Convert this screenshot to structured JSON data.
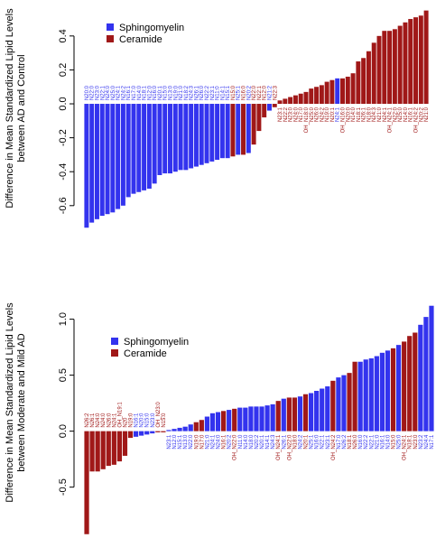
{
  "colors": {
    "sphingomyelin": "#3333ee",
    "ceramide": "#a01818",
    "axis": "#000000"
  },
  "chart_data": [
    {
      "type": "bar",
      "ylabel": "Difference in Mean Standardized Lipid Levels\nbetween AD and Control",
      "ylim": [
        -0.75,
        0.58
      ],
      "yticks": [
        -0.6,
        -0.4,
        -0.2,
        0.0,
        0.2,
        0.4
      ],
      "ytick_labels": [
        "-0.6",
        "-0.4",
        "-0.2",
        "0.0",
        "0.2",
        "0.4"
      ],
      "legend": [
        {
          "name": "Sphingomyelin",
          "color": "sphingomyelin"
        },
        {
          "name": "Ceramide",
          "color": "ceramide"
        }
      ],
      "legend_position": "top-left",
      "series": [
        {
          "name": "Sphingomyelin",
          "color": "sphingomyelin"
        },
        {
          "name": "Ceramide",
          "color": "ceramide"
        }
      ],
      "bars": [
        {
          "v": -0.73,
          "s": 0,
          "label": "N20:0"
        },
        {
          "v": -0.7,
          "s": 0,
          "label": "N22:0"
        },
        {
          "v": -0.68,
          "s": 0,
          "label": "N23:0"
        },
        {
          "v": -0.66,
          "s": 0,
          "label": "N22:1"
        },
        {
          "v": -0.65,
          "s": 0,
          "label": "N24:0"
        },
        {
          "v": -0.64,
          "s": 0,
          "label": "N25:0"
        },
        {
          "v": -0.62,
          "s": 0,
          "label": "N24:1"
        },
        {
          "v": -0.6,
          "s": 0,
          "label": "N24:2"
        },
        {
          "v": -0.55,
          "s": 0,
          "label": "N16:1"
        },
        {
          "v": -0.53,
          "s": 0,
          "label": "N17:0"
        },
        {
          "v": -0.52,
          "s": 0,
          "label": "N14:0"
        },
        {
          "v": -0.51,
          "s": 0,
          "label": "N18:1"
        },
        {
          "v": -0.5,
          "s": 0,
          "label": "N12:0"
        },
        {
          "v": -0.47,
          "s": 0,
          "label": "N16:0"
        },
        {
          "v": -0.42,
          "s": 0,
          "label": "N20:1"
        },
        {
          "v": -0.41,
          "s": 0,
          "label": "N15:0"
        },
        {
          "v": -0.41,
          "s": 0,
          "label": "N13:0"
        },
        {
          "v": -0.4,
          "s": 0,
          "label": "N19:0"
        },
        {
          "v": -0.39,
          "s": 0,
          "label": "N21:0"
        },
        {
          "v": -0.39,
          "s": 0,
          "label": "N18:2"
        },
        {
          "v": -0.38,
          "s": 0,
          "label": "N24:3"
        },
        {
          "v": -0.37,
          "s": 0,
          "label": "N26:1"
        },
        {
          "v": -0.36,
          "s": 0,
          "label": "N26:0"
        },
        {
          "v": -0.35,
          "s": 0,
          "label": "N22:2"
        },
        {
          "v": -0.34,
          "s": 0,
          "label": "N23:1"
        },
        {
          "v": -0.33,
          "s": 0,
          "label": "N11:0"
        },
        {
          "v": -0.32,
          "s": 0,
          "label": "N14:1"
        },
        {
          "v": -0.32,
          "s": 0,
          "label": "N15:1"
        },
        {
          "v": -0.31,
          "s": 1,
          "label": "N15:0"
        },
        {
          "v": -0.3,
          "s": 0,
          "label": "N25:1"
        },
        {
          "v": -0.3,
          "s": 1,
          "label": "N16:0"
        },
        {
          "v": -0.29,
          "s": 0,
          "label": "N20:2"
        },
        {
          "v": -0.24,
          "s": 1,
          "label": "N22:0"
        },
        {
          "v": -0.16,
          "s": 1,
          "label": "N22:1"
        },
        {
          "v": -0.08,
          "s": 1,
          "label": "N12:0"
        },
        {
          "v": -0.04,
          "s": 0,
          "label": "N21:2"
        },
        {
          "v": -0.02,
          "s": 1,
          "label": "N22:3"
        },
        {
          "v": 0.02,
          "s": 1,
          "label": "N23:1"
        },
        {
          "v": 0.03,
          "s": 1,
          "label": "N22:2"
        },
        {
          "v": 0.04,
          "s": 1,
          "label": "N23:0"
        },
        {
          "v": 0.05,
          "s": 1,
          "label": "N24:0"
        },
        {
          "v": 0.06,
          "s": 1,
          "label": "N17:0"
        },
        {
          "v": 0.07,
          "s": 1,
          "label": "OH_N18:0"
        },
        {
          "v": 0.09,
          "s": 1,
          "label": "N25:0"
        },
        {
          "v": 0.1,
          "s": 1,
          "label": "N26:0"
        },
        {
          "v": 0.11,
          "s": 1,
          "label": "N24:2"
        },
        {
          "v": 0.13,
          "s": 1,
          "label": "N19:0"
        },
        {
          "v": 0.14,
          "s": 1,
          "label": "N20:1"
        },
        {
          "v": 0.15,
          "s": 0,
          "label": "N24:1"
        },
        {
          "v": 0.15,
          "s": 1,
          "label": "OH_N16:0"
        },
        {
          "v": 0.16,
          "s": 1,
          "label": "N20:0"
        },
        {
          "v": 0.18,
          "s": 1,
          "label": "N14:0"
        },
        {
          "v": 0.25,
          "s": 1,
          "label": "N18:1"
        },
        {
          "v": 0.27,
          "s": 1,
          "label": "N26:1"
        },
        {
          "v": 0.31,
          "s": 1,
          "label": "N18:0"
        },
        {
          "v": 0.36,
          "s": 1,
          "label": "N24:3"
        },
        {
          "v": 0.4,
          "s": 1,
          "label": "N21:0"
        },
        {
          "v": 0.43,
          "s": 1,
          "label": "N24:1"
        },
        {
          "v": 0.43,
          "s": 1,
          "label": "OH_N24:1"
        },
        {
          "v": 0.44,
          "s": 1,
          "label": "N22:0"
        },
        {
          "v": 0.46,
          "s": 1,
          "label": "N25:0"
        },
        {
          "v": 0.48,
          "s": 1,
          "label": "N14:0"
        },
        {
          "v": 0.5,
          "s": 1,
          "label": "N16:1"
        },
        {
          "v": 0.51,
          "s": 1,
          "label": "OH_N24:2"
        },
        {
          "v": 0.52,
          "s": 1,
          "label": "N20:2"
        },
        {
          "v": 0.55,
          "s": 1,
          "label": "N21:0"
        }
      ]
    },
    {
      "type": "bar",
      "ylabel": "Difference in Mean Standardized Lipid Levels\nbetween Moderate and Mild AD",
      "ylim": [
        -0.93,
        1.15
      ],
      "yticks": [
        -0.5,
        0.0,
        0.5,
        1.0
      ],
      "ytick_labels": [
        "-0.5",
        "0.0",
        "0.5",
        "1.0"
      ],
      "legend": [
        {
          "name": "Sphingomyelin",
          "color": "sphingomyelin"
        },
        {
          "name": "Ceramide",
          "color": "ceramide"
        }
      ],
      "legend_position": "center-right",
      "series": [
        {
          "name": "Sphingomyelin",
          "color": "sphingomyelin"
        },
        {
          "name": "Ceramide",
          "color": "ceramide"
        }
      ],
      "bars": [
        {
          "v": -0.92,
          "s": 1,
          "label": "N26:2"
        },
        {
          "v": -0.36,
          "s": 1,
          "label": "N26:1"
        },
        {
          "v": -0.36,
          "s": 1,
          "label": "N24:0"
        },
        {
          "v": -0.34,
          "s": 1,
          "label": "N24:0"
        },
        {
          "v": -0.31,
          "s": 1,
          "label": "N26:0"
        },
        {
          "v": -0.3,
          "s": 1,
          "label": "N24:1"
        },
        {
          "v": -0.27,
          "s": 1,
          "label": "OH_N19:1"
        },
        {
          "v": -0.22,
          "s": 1,
          "label": "N20"
        },
        {
          "v": -0.06,
          "s": 1,
          "label": "N19:0"
        },
        {
          "v": -0.05,
          "s": 0,
          "label": "N16:1"
        },
        {
          "v": -0.04,
          "s": 0,
          "label": "N20:0"
        },
        {
          "v": -0.03,
          "s": 0,
          "label": "N15:0"
        },
        {
          "v": -0.02,
          "s": 0,
          "label": "N23:0"
        },
        {
          "v": -0.01,
          "s": 1,
          "label": "OH_N23:0"
        },
        {
          "v": -0.01,
          "s": 1,
          "label": "N15:0"
        },
        {
          "v": 0.01,
          "s": 0,
          "label": "N23:1"
        },
        {
          "v": 0.02,
          "s": 0,
          "label": "N12:0"
        },
        {
          "v": 0.03,
          "s": 0,
          "label": "N15:1"
        },
        {
          "v": 0.04,
          "s": 0,
          "label": "N13:0"
        },
        {
          "v": 0.06,
          "s": 0,
          "label": "N22:0"
        },
        {
          "v": 0.08,
          "s": 1,
          "label": "N19:0"
        },
        {
          "v": 0.1,
          "s": 1,
          "label": "N17:0"
        },
        {
          "v": 0.13,
          "s": 0,
          "label": "N21:0"
        },
        {
          "v": 0.16,
          "s": 0,
          "label": "N24:1"
        },
        {
          "v": 0.17,
          "s": 0,
          "label": "N24:0"
        },
        {
          "v": 0.18,
          "s": 1,
          "label": "N16:1"
        },
        {
          "v": 0.19,
          "s": 0,
          "label": "N20:2"
        },
        {
          "v": 0.2,
          "s": 1,
          "label": "OH_N22:0"
        },
        {
          "v": 0.21,
          "s": 0,
          "label": "N11:0"
        },
        {
          "v": 0.21,
          "s": 0,
          "label": "N14:0"
        },
        {
          "v": 0.22,
          "s": 0,
          "label": "N18:0"
        },
        {
          "v": 0.22,
          "s": 0,
          "label": "N20:2"
        },
        {
          "v": 0.22,
          "s": 0,
          "label": "N20:1"
        },
        {
          "v": 0.23,
          "s": 0,
          "label": "N14:1"
        },
        {
          "v": 0.24,
          "s": 0,
          "label": "N24:3"
        },
        {
          "v": 0.27,
          "s": 1,
          "label": "OH_N24:1"
        },
        {
          "v": 0.29,
          "s": 0,
          "label": "N26:1"
        },
        {
          "v": 0.3,
          "s": 1,
          "label": "OH_N22:0"
        },
        {
          "v": 0.3,
          "s": 1,
          "label": "N18:0"
        },
        {
          "v": 0.31,
          "s": 0,
          "label": "N24:2"
        },
        {
          "v": 0.33,
          "s": 1,
          "label": "N20:1"
        },
        {
          "v": 0.34,
          "s": 0,
          "label": "N25:1"
        },
        {
          "v": 0.36,
          "s": 0,
          "label": "N16:0"
        },
        {
          "v": 0.38,
          "s": 0,
          "label": "N22:1"
        },
        {
          "v": 0.4,
          "s": 0,
          "label": "N23:1"
        },
        {
          "v": 0.45,
          "s": 1,
          "label": "OH_N24:2"
        },
        {
          "v": 0.48,
          "s": 0,
          "label": "N17:0"
        },
        {
          "v": 0.5,
          "s": 0,
          "label": "N26:2"
        },
        {
          "v": 0.52,
          "s": 1,
          "label": "N18:1"
        },
        {
          "v": 0.62,
          "s": 1,
          "label": "N26:0"
        },
        {
          "v": 0.62,
          "s": 0,
          "label": "N16:0"
        },
        {
          "v": 0.64,
          "s": 0,
          "label": "N22:2"
        },
        {
          "v": 0.65,
          "s": 0,
          "label": "N22:1"
        },
        {
          "v": 0.67,
          "s": 0,
          "label": "N21:0"
        },
        {
          "v": 0.7,
          "s": 0,
          "label": "N16:1"
        },
        {
          "v": 0.72,
          "s": 0,
          "label": "N14:0"
        },
        {
          "v": 0.74,
          "s": 1,
          "label": "N15:0"
        },
        {
          "v": 0.77,
          "s": 0,
          "label": "N25:0"
        },
        {
          "v": 0.8,
          "s": 1,
          "label": "OH_N24:1"
        },
        {
          "v": 0.85,
          "s": 1,
          "label": "N18:1"
        },
        {
          "v": 0.88,
          "s": 1,
          "label": "N23:0"
        },
        {
          "v": 0.95,
          "s": 0,
          "label": "N23:2"
        },
        {
          "v": 1.02,
          "s": 0,
          "label": "N24:4"
        },
        {
          "v": 1.12,
          "s": 0,
          "label": "N17:1"
        }
      ]
    }
  ]
}
